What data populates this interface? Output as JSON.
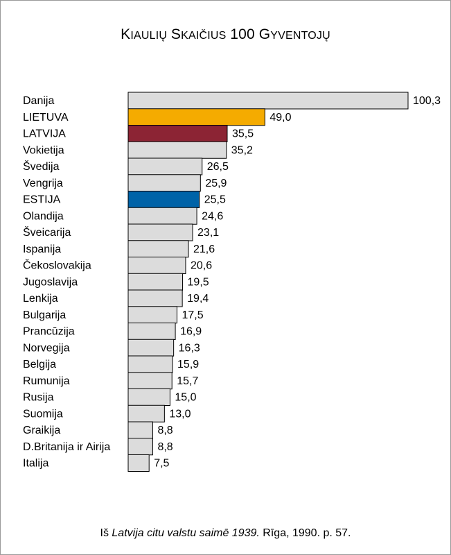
{
  "title": "Kiaulių skaičius 100 gyventojų",
  "source": {
    "prefix": "Iš ",
    "work": "Latvija citu valstu saimē 1939.",
    "rest": " Rīga, 1990. p. 57."
  },
  "colors": {
    "default": "#dcdcdc",
    "Lietuva": "#f5ab00",
    "Latvija": "#8c2434",
    "Estija": "#0063a8"
  },
  "chart_data": {
    "type": "bar",
    "orientation": "horizontal",
    "categories": [
      "Danija",
      "LIETUVA",
      "LATVIJA",
      "Vokietija",
      "Švedija",
      "Vengrija",
      "ESTIJA",
      "Olandija",
      "Šveicarija",
      "Ispanija",
      "Čekoslovakija",
      "Jugoslavija",
      "Lenkija",
      "Bulgarija",
      "Prancūzija",
      "Norvegija",
      "Belgija",
      "Rumunija",
      "Rusija",
      "Suomija",
      "Graikija",
      "D.Britanija ir Airija",
      "Italija"
    ],
    "values": [
      100.3,
      49.0,
      35.5,
      35.2,
      26.5,
      25.9,
      25.5,
      24.6,
      23.1,
      21.6,
      20.6,
      19.5,
      19.4,
      17.5,
      16.9,
      16.3,
      15.9,
      15.7,
      15.0,
      13.0,
      8.8,
      8.8,
      7.5
    ],
    "value_labels": [
      "100,3",
      "49,0",
      "35,5",
      "35,2",
      "26,5",
      "25,9",
      "25,5",
      "24,6",
      "23,1",
      "21,6",
      "20,6",
      "19,5",
      "19,4",
      "17,5",
      "16,9",
      "16,3",
      "15,9",
      "15,7",
      "15,0",
      "13,0",
      "8,8",
      "8,8",
      "7,5"
    ],
    "highlight": {
      "LIETUVA": "Lietuva",
      "LATVIJA": "Latvija",
      "ESTIJA": "Estija"
    },
    "xlim": [
      0,
      100.3
    ],
    "grid": false,
    "legend": "none",
    "xlabel": "",
    "ylabel": ""
  }
}
